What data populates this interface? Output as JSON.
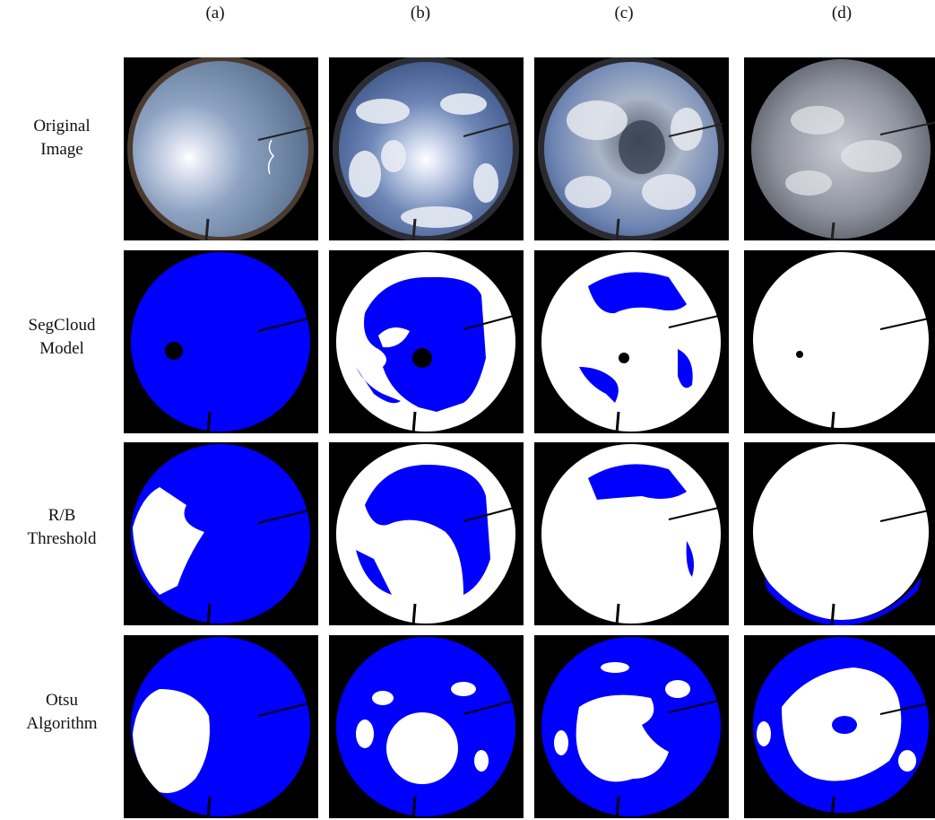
{
  "columns": [
    "(a)",
    "(b)",
    "(c)",
    "(d)"
  ],
  "rows": [
    {
      "line1": "Original",
      "line2": "Image"
    },
    {
      "line1": "SegCloud",
      "line2": "Model"
    },
    {
      "line1": "R/B",
      "line2": "Threshold"
    },
    {
      "line1": "Otsu",
      "line2": "Algorithm"
    }
  ],
  "colors": {
    "sky": "#0000ff",
    "cloud": "#ffffff",
    "background": "#000000"
  }
}
